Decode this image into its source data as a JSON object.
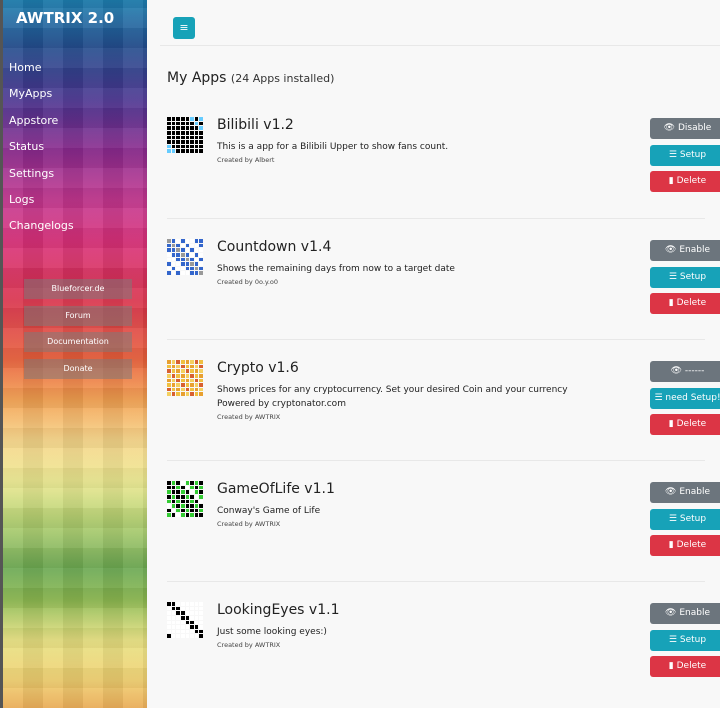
{
  "sidebar": {
    "brand": "AWTRIX 2.0",
    "nav": [
      "Home",
      "MyApps",
      "Appstore",
      "Status",
      "Settings",
      "Logs",
      "Changelogs"
    ],
    "links": [
      "Blueforcer.de",
      "Forum",
      "Documentation",
      "Donate"
    ]
  },
  "header": {
    "menu_icon": "align-left-icon",
    "accent": "#17a2b8"
  },
  "page": {
    "title": "My Apps",
    "subtitle": "(24 Apps installed)"
  },
  "apps": [
    {
      "name": "Bilibili v1.2",
      "desc": "This is a app for a Bilibili Upper to show fans count.",
      "desc2": "",
      "by": "Created by Albert",
      "toggle": "Disable",
      "setup": "Setup",
      "delete": "Delete"
    },
    {
      "name": "Countdown v1.4",
      "desc": "Shows the remaining days from now to a target date",
      "desc2": "",
      "by": "Created by 0o.y.o0",
      "toggle": "Enable",
      "setup": "Setup",
      "delete": "Delete"
    },
    {
      "name": "Crypto v1.6",
      "desc": "Shows prices for any cryptocurrency. Set your desired Coin and your currency",
      "desc2": "Powered by cryptonator.com",
      "by": "Created by AWTRIX",
      "toggle": "------",
      "setup": "need Setup!",
      "delete": "Delete"
    },
    {
      "name": "GameOfLife v1.1",
      "desc": "Conway's Game of Life",
      "desc2": "",
      "by": "Created by AWTRIX",
      "toggle": "Enable",
      "setup": "Setup",
      "delete": "Delete"
    },
    {
      "name": "LookingEyes v1.1",
      "desc": "Just some looking eyes:)",
      "desc2": "",
      "by": "Created by AWTRIX",
      "toggle": "Enable",
      "setup": "Setup",
      "delete": "Delete"
    }
  ]
}
